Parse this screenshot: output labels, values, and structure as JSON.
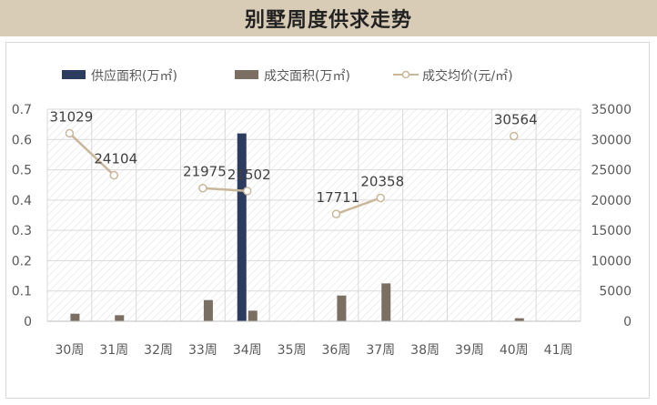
{
  "title": "别墅周度供求走势",
  "chart_data": {
    "type": "bar",
    "title": "别墅周度供求走势",
    "categories": [
      "30周",
      "31周",
      "32周",
      "33周",
      "34周",
      "35周",
      "36周",
      "37周",
      "38周",
      "39周",
      "40周",
      "41周"
    ],
    "series": [
      {
        "name": "供应面积(万㎡)",
        "kind": "bar",
        "axis": "left",
        "color": "#2c3c5e",
        "values": [
          0,
          0,
          0,
          0,
          0.62,
          0,
          0,
          0,
          0,
          0,
          0,
          0
        ]
      },
      {
        "name": "成交面积(万㎡)",
        "kind": "bar",
        "axis": "left",
        "color": "#7a6f62",
        "values": [
          0.025,
          0.02,
          0,
          0.07,
          0.035,
          0,
          0.085,
          0.125,
          0,
          0,
          0.01,
          0
        ]
      },
      {
        "name": "成交均价(元/㎡)",
        "kind": "line",
        "axis": "right",
        "color": "#c9b79a",
        "values": [
          31029,
          24104,
          null,
          21975,
          21502,
          null,
          17711,
          20358,
          null,
          null,
          30564,
          null
        ]
      }
    ],
    "left_axis": {
      "min": 0,
      "max": 0.7,
      "ticks": [
        "0",
        "0.1",
        "0.2",
        "0.3",
        "0.4",
        "0.5",
        "0.6",
        "0.7"
      ]
    },
    "right_axis": {
      "min": 0,
      "max": 35000,
      "ticks": [
        "0",
        "5000",
        "10000",
        "15000",
        "20000",
        "25000",
        "30000",
        "35000"
      ]
    },
    "data_labels": [
      "31029",
      "24104",
      "",
      "21975",
      "21502",
      "",
      "17711",
      "20358",
      "",
      "",
      "30564",
      ""
    ],
    "legend_position": "top"
  }
}
